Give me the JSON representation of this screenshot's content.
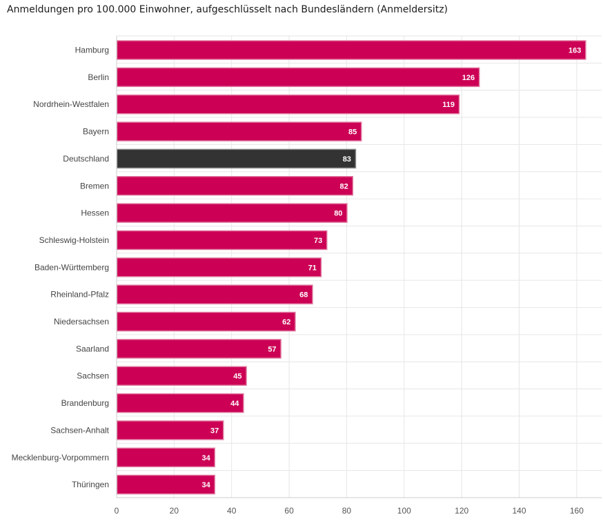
{
  "chart_data": {
    "type": "bar",
    "orientation": "horizontal",
    "title": "Anmeldungen pro 100.000 Einwohner, aufgeschlüsselt nach Bundesländern (Anmeldersitz)",
    "xlabel": "",
    "ylabel": "",
    "categories": [
      "Hamburg",
      "Berlin",
      "Nordrhein-Westfalen",
      "Bayern",
      "Deutschland",
      "Bremen",
      "Hessen",
      "Schleswig-Holstein",
      "Baden-Württemberg",
      "Rheinland-Pfalz",
      "Niedersachsen",
      "Saarland",
      "Sachsen",
      "Brandenburg",
      "Sachsen-Anhalt",
      "Mecklenburg-Vorpommern",
      "Thüringen"
    ],
    "values": [
      163,
      126,
      119,
      85,
      83,
      82,
      80,
      73,
      71,
      68,
      62,
      57,
      45,
      44,
      37,
      34,
      34
    ],
    "highlight": "Deutschland",
    "xlim": [
      0,
      168
    ],
    "xticks": [
      0,
      20,
      40,
      60,
      80,
      100,
      120,
      140,
      160
    ],
    "grid": true,
    "colors": {
      "bar": "#cc0055",
      "bar_stroke": "#e07aa0",
      "highlight": "#333333",
      "highlight_stroke": "#888888"
    }
  }
}
